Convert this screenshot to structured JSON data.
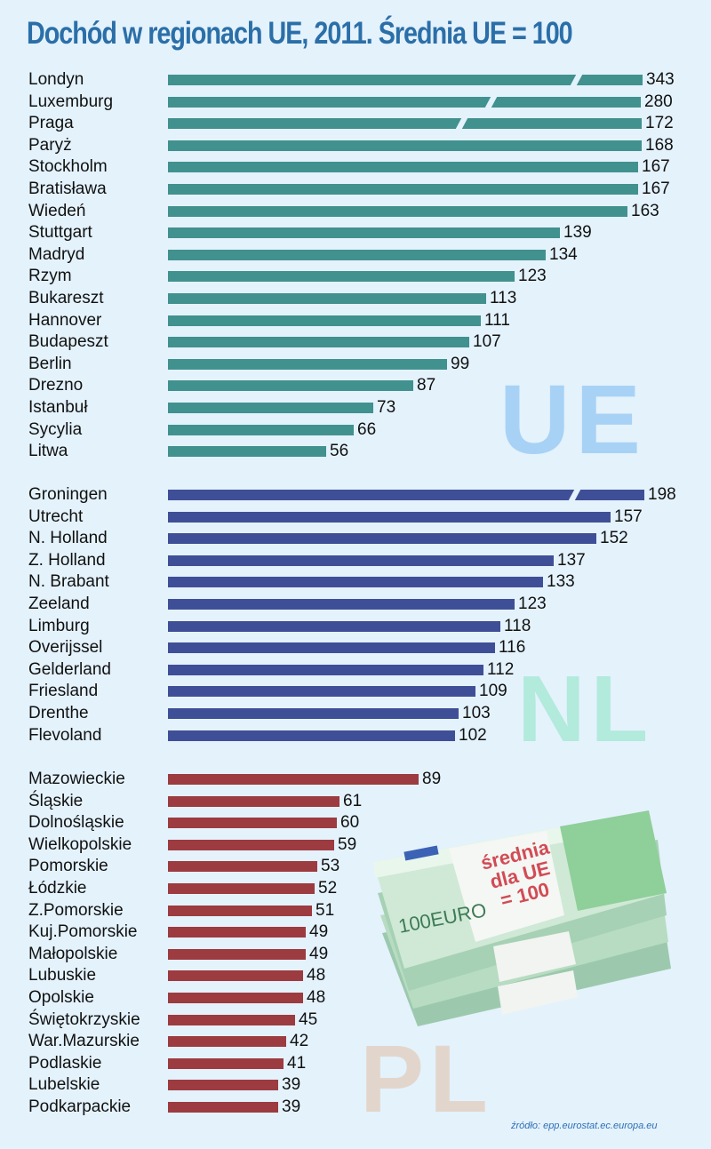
{
  "title": "Dochód w regionach UE, 2011.   Średnia UE = 100",
  "watermarks": {
    "ue": "UE",
    "nl": "NL",
    "pl": "PL"
  },
  "money_label": {
    "line1": "średnia",
    "line2": "dla UE",
    "line3": "= 100"
  },
  "source": "źródło: epp.eurostat.ec.europa.eu",
  "colors": {
    "ue": "#41918f",
    "nl": "#3f4f97",
    "pl": "#9c3b40",
    "title": "#2b6fa8",
    "background": "#e4f2fc"
  },
  "chart_data": {
    "type": "bar",
    "orientation": "horizontal",
    "title": "Dochód w regionach UE, 2011. Średnia UE = 100",
    "xlabel": "",
    "ylabel": "",
    "grid": false,
    "legend": "none (groups labelled by watermarks UE, NL, PL)",
    "note": "Bars for Londyn, Luxemburg, Praga and Groningen are drawn with scale breaks",
    "groups": [
      {
        "name": "UE",
        "categories": [
          "Londyn",
          "Luxemburg",
          "Praga",
          "Paryż",
          "Stockholm",
          "Bratisława",
          "Wiedeń",
          "Stuttgart",
          "Madryd",
          "Rzym",
          "Bukareszt",
          "Hannover",
          "Budapeszt",
          "Berlin",
          "Drezno",
          "Istanbuł",
          "Sycylia",
          "Litwa"
        ],
        "values": [
          343,
          280,
          172,
          168,
          167,
          167,
          163,
          139,
          134,
          123,
          113,
          111,
          107,
          99,
          87,
          73,
          66,
          56
        ]
      },
      {
        "name": "NL",
        "categories": [
          "Groningen",
          "Utrecht",
          "N. Holland",
          "Z. Holland",
          "N. Brabant",
          "Zeeland",
          "Limburg",
          "Overijssel",
          "Gelderland",
          "Friesland",
          "Drenthe",
          "Flevoland"
        ],
        "values": [
          198,
          157,
          152,
          137,
          133,
          123,
          118,
          116,
          112,
          109,
          103,
          102
        ]
      },
      {
        "name": "PL",
        "categories": [
          "Mazowieckie",
          "Śląskie",
          "Dolnośląskie",
          "Wielkopolskie",
          "Pomorskie",
          "Łódzkie",
          "Z.Pomorskie",
          "Kuj.Pomorskie",
          "Małopolskie",
          "Lubuskie",
          "Opolskie",
          "Świętokrzyskie",
          "War.Mazurskie",
          "Podlaskie",
          "Lubelskie",
          "Podkarpackie"
        ],
        "values": [
          89,
          61,
          60,
          59,
          53,
          52,
          51,
          49,
          49,
          48,
          48,
          45,
          42,
          41,
          39,
          39
        ]
      }
    ]
  }
}
